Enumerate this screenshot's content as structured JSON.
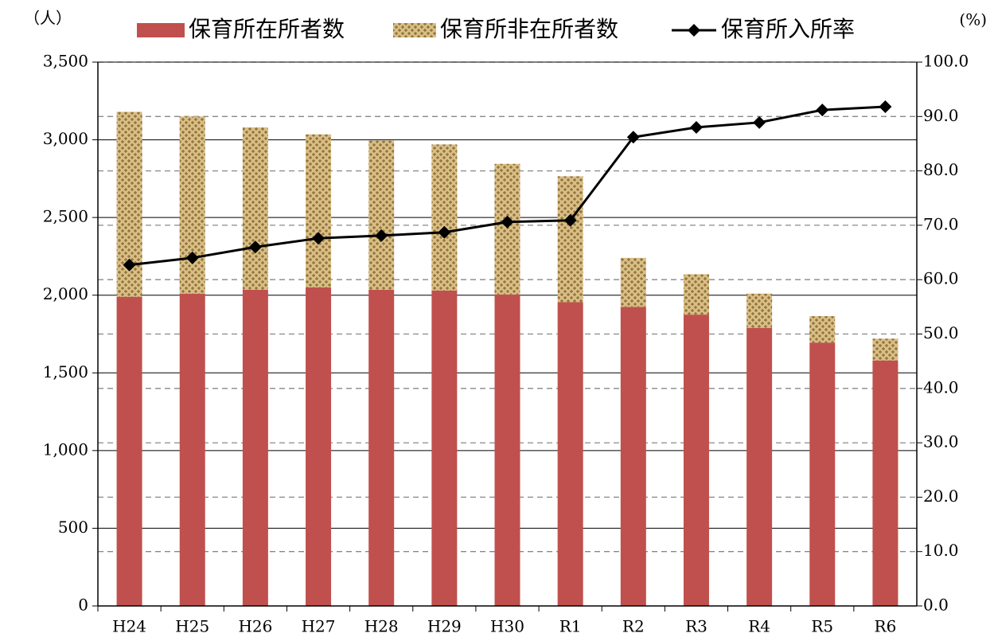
{
  "chart_data": {
    "type": "bar",
    "stacked": true,
    "y_axis_label": "（人）",
    "y2_axis_label": "(%)",
    "categories": [
      "H24",
      "H25",
      "H26",
      "H27",
      "H28",
      "H29",
      "H30",
      "R1",
      "R2",
      "R3",
      "R4",
      "R5",
      "R6"
    ],
    "series": [
      {
        "name": "保育所在所者数",
        "type": "bar",
        "color": "#c0504d",
        "values": [
          1990,
          2010,
          2035,
          2050,
          2035,
          2030,
          2005,
          1955,
          1925,
          1875,
          1790,
          1695,
          1580
        ]
      },
      {
        "name": "保育所非在所者数",
        "type": "bar",
        "color": "#d9bf85",
        "pattern": true,
        "values": [
          1190,
          1140,
          1045,
          985,
          960,
          940,
          840,
          810,
          315,
          260,
          220,
          170,
          140
        ]
      },
      {
        "name": "保育所入所率",
        "type": "line",
        "axis": "y2",
        "color": "#000000",
        "marker": "diamond",
        "values": [
          62.7,
          64.0,
          66.0,
          67.6,
          68.1,
          68.7,
          70.6,
          70.9,
          86.2,
          88.0,
          88.9,
          91.2,
          91.8
        ]
      }
    ],
    "ylim": [
      0,
      3500
    ],
    "yticks": [
      0,
      500,
      {
        "value": 1000,
        "label": "1,000"
      },
      {
        "value": 1500,
        "label": "1,500"
      },
      {
        "value": 2000,
        "label": "2,000"
      },
      {
        "value": 2500,
        "label": "2,500"
      },
      {
        "value": 3000,
        "label": "3,000"
      },
      {
        "value": 3500,
        "label": "3,500"
      }
    ],
    "y2lim": [
      0,
      100
    ],
    "y2ticks": [
      {
        "value": 0,
        "label": "0.0"
      },
      {
        "value": 10,
        "label": "10.0"
      },
      {
        "value": 20,
        "label": "20.0"
      },
      {
        "value": 30,
        "label": "30.0"
      },
      {
        "value": 40,
        "label": "40.0"
      },
      {
        "value": 50,
        "label": "50.0"
      },
      {
        "value": 60,
        "label": "60.0"
      },
      {
        "value": 70,
        "label": "70.0"
      },
      {
        "value": 80,
        "label": "80.0"
      },
      {
        "value": 90,
        "label": "90.0"
      },
      {
        "value": 100,
        "label": "100.0"
      }
    ],
    "grid": true,
    "y2grid": true,
    "legend": "top"
  }
}
